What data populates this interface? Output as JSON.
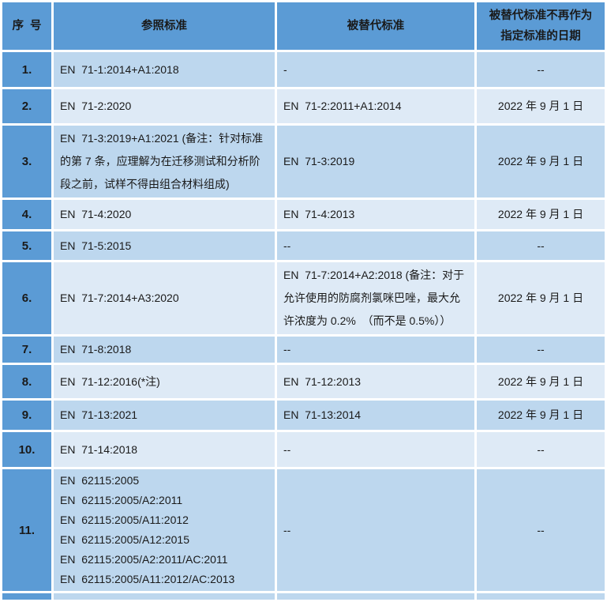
{
  "table": {
    "headers": {
      "serial": "序  号",
      "reference": "参照标准",
      "replaced": "被替代标准",
      "date": "被替代标准不再作为\n指定标准的日期"
    },
    "rows": [
      {
        "num": "1.",
        "ref": "EN  71-1:2014+A1:2018",
        "rep": "-",
        "date": "--"
      },
      {
        "num": "2.",
        "ref": "EN  71-2:2020",
        "rep": "EN  71-2:2011+A1:2014",
        "date": "2022 年 9 月 1 日"
      },
      {
        "num": "3.",
        "ref": "EN  71-3:2019+A1:2021 (备注：针对标准的第 7 条，应理解为在迁移测试和分析阶段之前，试样不得由组合材料组成)",
        "rep": "EN  71-3:2019",
        "date": "2022 年 9 月 1 日"
      },
      {
        "num": "4.",
        "ref": "EN  71-4:2020",
        "rep": "EN  71-4:2013",
        "date": "2022 年 9 月 1 日"
      },
      {
        "num": "5.",
        "ref": "EN  71-5:2015",
        "rep": "--",
        "date": "--"
      },
      {
        "num": "6.",
        "ref": "EN  71-7:2014+A3:2020",
        "rep": "EN  71-7:2014+A2:2018 (备注：对于允许使用的防腐剂氯咪巴唑，最大允许浓度为 0.2%  （而不是 0.5%））",
        "date": "2022 年 9 月 1 日"
      },
      {
        "num": "7.",
        "ref": "EN  71-8:2018",
        "rep": "--",
        "date": "--"
      },
      {
        "num": "8.",
        "ref": "EN  71-12:2016(*注)",
        "rep": "EN  71-12:2013",
        "date": "2022 年 9 月 1 日"
      },
      {
        "num": "9.",
        "ref": "EN  71-13:2021",
        "rep": "EN  71-13:2014",
        "date": "2022 年 9 月 1 日"
      },
      {
        "num": "10.",
        "ref": "EN  71-14:2018",
        "rep": "--",
        "date": "--"
      },
      {
        "num": "11.",
        "ref": "EN  62115:2005\nEN  62115:2005/A2:2011\nEN  62115:2005/A11:2012\nEN  62115:2005/A12:2015\nEN  62115:2005/A2:2011/AC:2011\nEN  62115:2005/A11:2012/AC:2013",
        "rep": "--",
        "date": "--"
      }
    ]
  },
  "colors": {
    "header_blue": "#5b9bd5",
    "band_dark": "#bdd7ee",
    "band_light": "#deeaf6",
    "grid_white": "#ffffff",
    "text": "#1a1a1a"
  }
}
